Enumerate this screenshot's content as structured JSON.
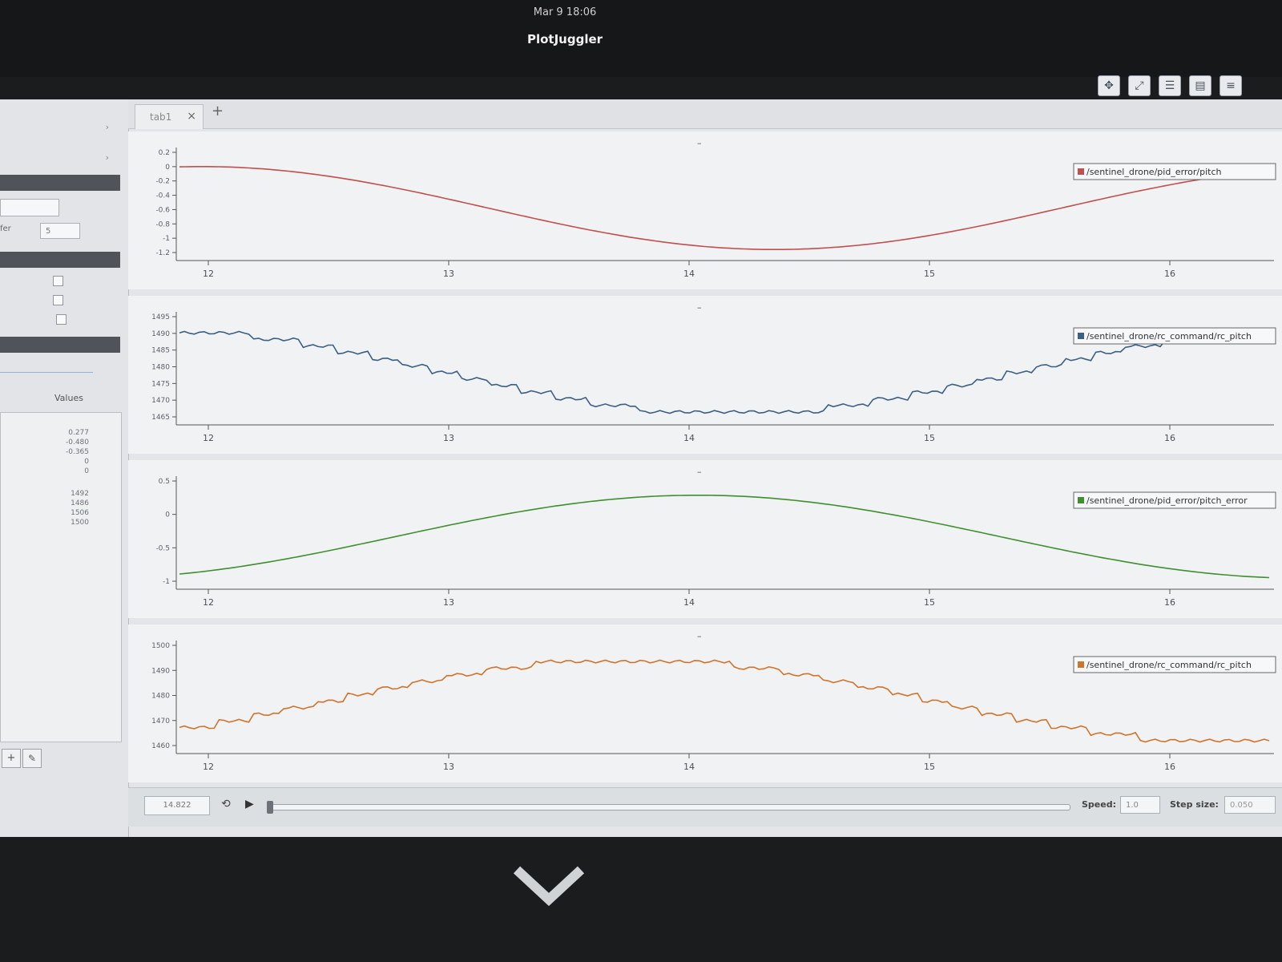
{
  "system": {
    "clock": "Mar 9  18:06",
    "window_title": "PlotJuggler"
  },
  "toolbar": {
    "icons": [
      "move-arrows-icon",
      "chart-zoom-icon",
      "list-icon",
      "layout-icon",
      "menu-icon",
      "link-icon"
    ]
  },
  "tabs": [
    {
      "label": "tab1"
    }
  ],
  "tab_add": "+",
  "tab_close": "×",
  "sidebar": {
    "spinner_label": "fer",
    "spinner_value": "5",
    "values_checkbox_label": "Values",
    "numbers": [
      "0.277",
      "-0.480",
      "-0.365",
      "0",
      "0",
      "1492",
      "1486",
      "1506",
      "1500"
    ],
    "add_label": "+",
    "edit_label": "✎"
  },
  "plots": [
    {
      "name": "plot-pitch-1",
      "legend": "/sentinel_drone/pid_error/pitch",
      "color": "#c0504d",
      "yticks": [
        "0.2",
        "0",
        "-0.2",
        "-0.4",
        "-0.6",
        "-0.8",
        "-1",
        "-1.2"
      ],
      "xticks": [
        "12",
        "13",
        "14",
        "15",
        "16"
      ]
    },
    {
      "name": "plot-rc-1",
      "legend": "/sentinel_drone/rc_command/rc_pitch",
      "color": "#3b5f85",
      "yticks": [
        "1495",
        "1490",
        "1485",
        "1480",
        "1475",
        "1470",
        "1465"
      ],
      "xticks": [
        "12",
        "13",
        "14",
        "15",
        "16"
      ]
    },
    {
      "name": "plot-pitch-error",
      "legend": "/sentinel_drone/pid_error/pitch_error",
      "color": "#3f8f2f",
      "yticks": [
        "0.5",
        "0",
        "-0.5",
        "-1"
      ],
      "xticks": [
        "12",
        "13",
        "14",
        "15",
        "16"
      ]
    },
    {
      "name": "plot-rc-pitch",
      "legend": "/sentinel_drone/rc_command/rc_pitch",
      "color": "#d0742c",
      "yticks": [
        "1500",
        "1490",
        "1480",
        "1470",
        "1460"
      ],
      "xticks": [
        "12",
        "13",
        "14",
        "15",
        "16"
      ]
    }
  ],
  "playback": {
    "time": "14.822",
    "speed_label": "Speed:",
    "speed": "1.0",
    "step_label": "Step size:",
    "step": "0.050"
  }
}
